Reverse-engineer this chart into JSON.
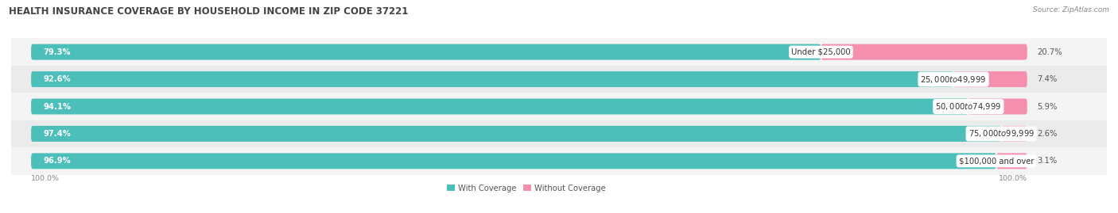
{
  "title": "HEALTH INSURANCE COVERAGE BY HOUSEHOLD INCOME IN ZIP CODE 37221",
  "source": "Source: ZipAtlas.com",
  "categories": [
    "Under $25,000",
    "$25,000 to $49,999",
    "$50,000 to $74,999",
    "$75,000 to $99,999",
    "$100,000 and over"
  ],
  "with_coverage": [
    79.3,
    92.6,
    94.1,
    97.4,
    96.9
  ],
  "without_coverage": [
    20.7,
    7.4,
    5.9,
    2.6,
    3.1
  ],
  "color_with": "#4CBFBA",
  "color_without": "#F48FAE",
  "title_fontsize": 8.5,
  "label_fontsize": 7.2,
  "tick_fontsize": 6.8,
  "legend_fontsize": 7.2,
  "bar_height": 0.58,
  "legend_labels": [
    "With Coverage",
    "Without Coverage"
  ],
  "row_bg_even": "#F4F4F4",
  "row_bg_odd": "#EBEBEB"
}
